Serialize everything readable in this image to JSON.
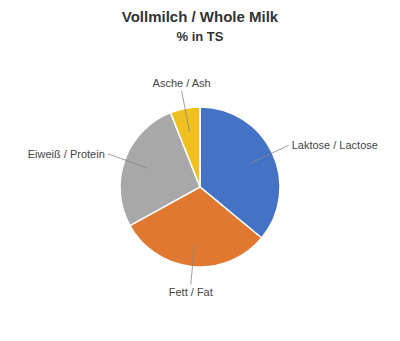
{
  "chart_data": {
    "type": "pie",
    "title": "Vollmilch / Whole Milk",
    "subtitle": "% in TS",
    "categories": [
      "Laktose / Lactose",
      "Fett / Fat",
      "Eiweiß / Protein",
      "Asche / Ash"
    ],
    "values": [
      36.0,
      31.0,
      27.0,
      6.0
    ],
    "colors": [
      "#4472C4",
      "#E07830",
      "#A8A8A8",
      "#F0C020"
    ]
  }
}
